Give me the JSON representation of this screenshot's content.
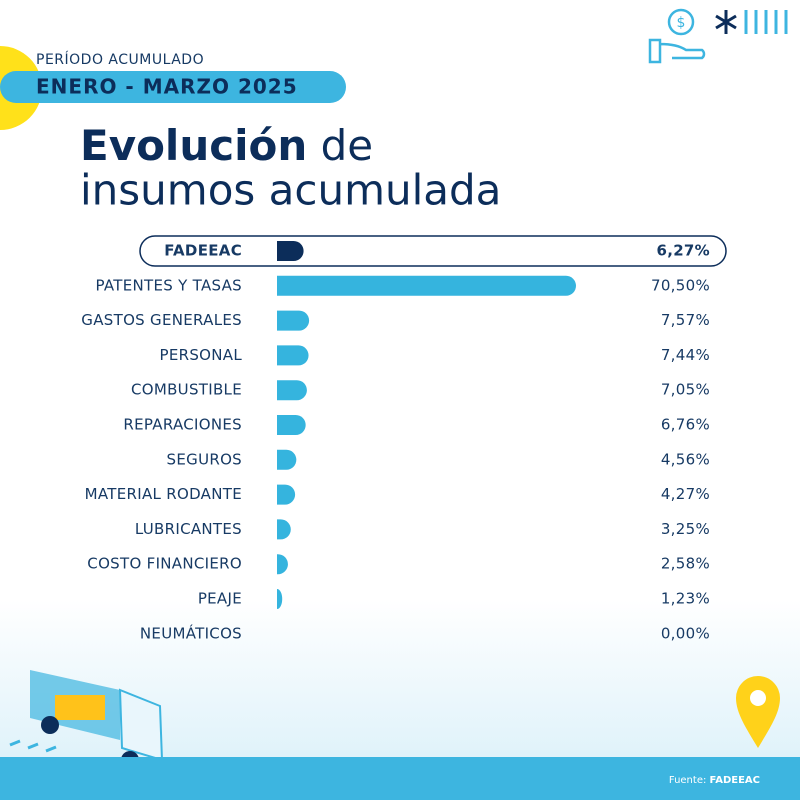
{
  "header": {
    "period_label": "PERÍODO ACUMULADO",
    "period": "ENERO - MARZO 2025"
  },
  "chart_data": {
    "type": "bar",
    "orientation": "horizontal",
    "title_bold": "Evolución",
    "title_line1": "de",
    "title_line2": "insumos acumulada",
    "categories": [
      "FADEEAC",
      "PATENTES Y TASAS",
      "GASTOS GENERALES",
      "PERSONAL",
      "COMBUSTIBLE",
      "REPARACIONES",
      "SEGUROS",
      "MATERIAL RODANTE",
      "LUBRICANTES",
      "COSTO FINANCIERO",
      "PEAJE",
      "NEUMÁTICOS"
    ],
    "values": [
      6.27,
      70.5,
      7.57,
      7.44,
      7.05,
      6.76,
      4.56,
      4.27,
      3.25,
      2.58,
      1.23,
      0
    ],
    "value_labels": [
      "6,27%",
      "70,50%",
      "7,57%",
      "7,44%",
      "7,05%",
      "6,76%",
      "4,56%",
      "4,27%",
      "3,25%",
      "2,58%",
      "1,23%",
      "0,00%"
    ],
    "colors": [
      "#0c2d5a",
      "#35b4de",
      "#35b4de",
      "#35b4de",
      "#35b4de",
      "#35b4de",
      "#35b4de",
      "#35b4de",
      "#35b4de",
      "#35b4de",
      "#35b4de",
      "#35b4de"
    ]
  },
  "footer": {
    "source_label": "Fuente:",
    "source": "FADEEAC"
  }
}
